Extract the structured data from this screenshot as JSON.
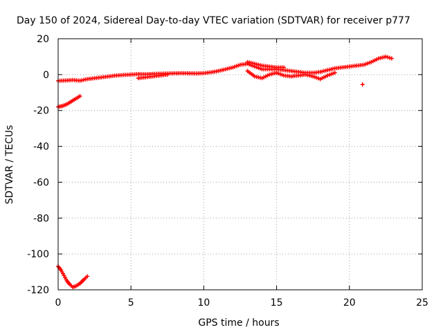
{
  "chart_data": {
    "type": "scatter",
    "title": "Day 150 of 2024, Sidereal Day-to-day VTEC variation (SDTVAR) for receiver p777",
    "xlabel": "GPS time / hours",
    "ylabel": "SDTVAR / TECUs",
    "xlim": [
      0,
      25
    ],
    "ylim": [
      -120,
      20
    ],
    "x_ticks": [
      0,
      5,
      10,
      15,
      20,
      25
    ],
    "y_ticks": [
      20,
      0,
      -20,
      -40,
      -60,
      -80,
      -100,
      -120
    ],
    "grid": true,
    "marker": "+",
    "color": "#ff0000",
    "series": [
      {
        "name": "main-arc",
        "points": [
          [
            0,
            -3.5
          ],
          [
            0.5,
            -3.3
          ],
          [
            1,
            -3
          ],
          [
            1.5,
            -3.4
          ],
          [
            2,
            -2.5
          ],
          [
            2.5,
            -2
          ],
          [
            3,
            -1.5
          ],
          [
            3.5,
            -1
          ],
          [
            4,
            -0.5
          ],
          [
            4.5,
            -0.2
          ],
          [
            5,
            0
          ],
          [
            5.5,
            0.3
          ],
          [
            6,
            0.2
          ],
          [
            6.5,
            0.4
          ],
          [
            7,
            0.5
          ],
          [
            7.5,
            0.6
          ],
          [
            8,
            0.7
          ],
          [
            8.5,
            0.8
          ],
          [
            9,
            0.7
          ],
          [
            9.5,
            0.6
          ],
          [
            10,
            0.8
          ],
          [
            10.5,
            1.3
          ],
          [
            11,
            2
          ],
          [
            11.5,
            3
          ],
          [
            12,
            4
          ],
          [
            12.5,
            5.5
          ],
          [
            13,
            6
          ],
          [
            13.5,
            4.5
          ],
          [
            14,
            3
          ],
          [
            14.5,
            3
          ],
          [
            15,
            3
          ],
          [
            15.5,
            2.5
          ],
          [
            16,
            2
          ],
          [
            16.5,
            1.5
          ],
          [
            17,
            1
          ],
          [
            17.5,
            1
          ],
          [
            18,
            1.5
          ],
          [
            18.5,
            2.5
          ],
          [
            19,
            3.5
          ],
          [
            19.5,
            4
          ],
          [
            20,
            4.5
          ],
          [
            20.5,
            5
          ],
          [
            21,
            5.5
          ],
          [
            21.5,
            7
          ],
          [
            22,
            9
          ],
          [
            22.5,
            10
          ],
          [
            22.9,
            9
          ]
        ]
      },
      {
        "name": "lower-branch-1",
        "points": [
          [
            5.5,
            -2
          ],
          [
            6,
            -1.5
          ],
          [
            6.5,
            -1
          ],
          [
            7,
            -0.5
          ],
          [
            7.5,
            0
          ]
        ]
      },
      {
        "name": "lower-branch-2",
        "points": [
          [
            13,
            2
          ],
          [
            13.5,
            -1
          ],
          [
            14,
            -2
          ],
          [
            14.5,
            0
          ],
          [
            15,
            1
          ]
        ]
      },
      {
        "name": "lower-branch-3",
        "points": [
          [
            15,
            1
          ],
          [
            15.5,
            -0.5
          ],
          [
            16,
            -1
          ],
          [
            16.5,
            -0.5
          ],
          [
            17,
            0
          ],
          [
            17.5,
            -1
          ],
          [
            18,
            -2.5
          ],
          [
            18.5,
            -0.5
          ],
          [
            19,
            1
          ]
        ]
      },
      {
        "name": "upper-band",
        "points": [
          [
            13,
            7
          ],
          [
            13.5,
            6
          ],
          [
            14,
            5
          ],
          [
            14.5,
            4.5
          ],
          [
            15,
            4
          ],
          [
            15.5,
            4
          ]
        ]
      },
      {
        "name": "outlier",
        "points": [
          [
            20.9,
            -5.5
          ]
        ]
      },
      {
        "name": "early-arc-minus18",
        "points": [
          [
            0,
            -18
          ],
          [
            0.3,
            -17.5
          ],
          [
            0.6,
            -16.5
          ],
          [
            0.9,
            -15
          ],
          [
            1.2,
            -13.5
          ],
          [
            1.5,
            -12
          ]
        ]
      },
      {
        "name": "early-arc-minus110",
        "points": [
          [
            0,
            -107
          ],
          [
            0.2,
            -109
          ],
          [
            0.4,
            -112
          ],
          [
            0.6,
            -115
          ],
          [
            0.8,
            -117
          ],
          [
            1,
            -118.5
          ],
          [
            1.2,
            -118
          ],
          [
            1.5,
            -116.5
          ],
          [
            1.8,
            -114
          ],
          [
            2,
            -112.5
          ]
        ]
      }
    ]
  }
}
